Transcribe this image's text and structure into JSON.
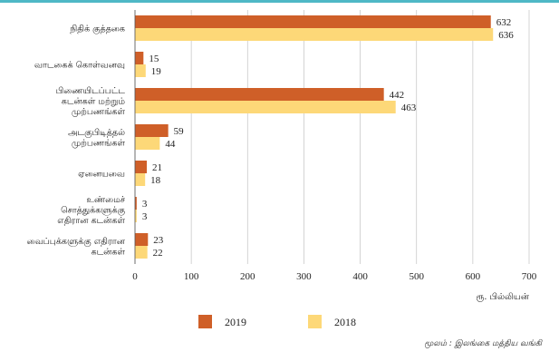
{
  "chart_data": {
    "type": "bar",
    "orientation": "horizontal",
    "categories": [
      [
        "நிதிக் குத்தகை"
      ],
      [
        "வாடகைக் கொள்வனவு"
      ],
      [
        "பிணையிடப்பட்ட",
        "கடன்கள் மற்றும்",
        "முற்பணங்கள்"
      ],
      [
        "அடகுபிடித்தல்",
        "முற்பணங்கள்"
      ],
      [
        "ஏனையவை"
      ],
      [
        "உண்மைச்",
        "சொத்துக்களுக்கு",
        "எதிரான கடன்கள்"
      ],
      [
        "வைப்புக்களுக்கு எதிரான",
        "கடன்கள்"
      ]
    ],
    "series": [
      {
        "name": "2019",
        "color": "#cf5f28",
        "values": [
          632,
          15,
          442,
          59,
          21,
          3,
          23
        ]
      },
      {
        "name": "2018",
        "color": "#fdd878",
        "values": [
          636,
          19,
          463,
          44,
          18,
          3,
          22
        ]
      }
    ],
    "xlim": [
      0,
      700
    ],
    "xticks": [
      0,
      100,
      200,
      300,
      400,
      500,
      600,
      700
    ],
    "xlabel": "ரூ. பில்லியன்",
    "legend_placement": "bottom",
    "grid": true,
    "source": "மூலம் : இலங்கை மத்திய வங்கி"
  }
}
